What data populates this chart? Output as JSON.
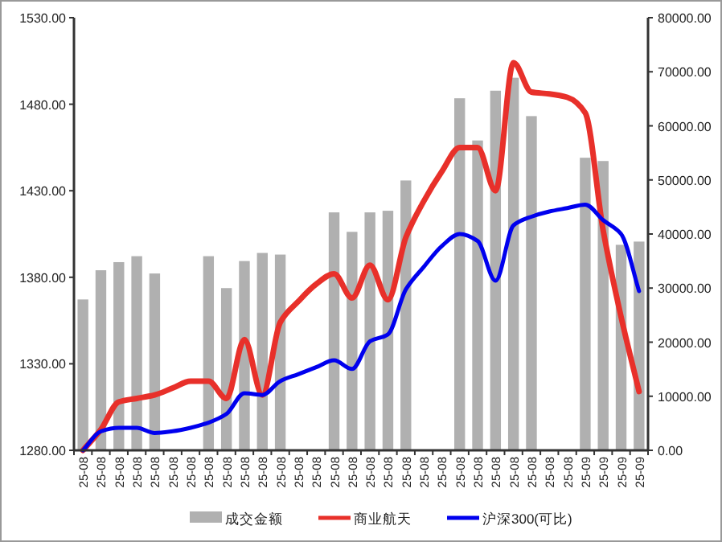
{
  "chart_data": {
    "type": "bar",
    "categories": [
      "25-08",
      "25-08",
      "25-08",
      "25-08",
      "25-08",
      "25-08",
      "25-08",
      "25-08",
      "25-08",
      "25-08",
      "25-08",
      "25-08",
      "25-08",
      "25-08",
      "25-08",
      "25-08",
      "25-08",
      "25-08",
      "25-08",
      "25-08",
      "25-08",
      "25-08",
      "25-08",
      "25-08",
      "25-08",
      "25-08",
      "25-08",
      "25-08",
      "25-09",
      "25-09",
      "25-09",
      "25-09"
    ],
    "series": [
      {
        "name": "成交金额",
        "axis": "y2",
        "color": "#b0b0b0",
        "values": [
          27900,
          33300,
          34800,
          35900,
          32700,
          null,
          null,
          35900,
          30000,
          35000,
          36500,
          36200,
          null,
          null,
          44000,
          40400,
          44000,
          44300,
          49900,
          null,
          null,
          65100,
          57300,
          66500,
          68900,
          61800,
          null,
          null,
          54100,
          53500,
          38000,
          38600
        ]
      },
      {
        "name": "商业航天",
        "type": "line",
        "axis": "y",
        "color": "#e8302a",
        "values": [
          1280,
          1292,
          1308,
          1310,
          1312,
          1316,
          1320,
          1320,
          1310,
          1344,
          1312,
          1354,
          1366,
          1376,
          1382,
          1368,
          1387,
          1367,
          1403,
          1424,
          1441,
          1455,
          1455,
          1430,
          1504,
          1487,
          1486,
          1484,
          1475,
          1407,
          1357,
          1314
        ]
      },
      {
        "name": "沪深300(可比)",
        "type": "line",
        "axis": "y",
        "color": "#0000ee",
        "values": [
          1280,
          1291,
          1293,
          1293,
          1290,
          1291,
          1293,
          1296,
          1301,
          1313,
          1312,
          1320,
          1324,
          1328,
          1332,
          1327,
          1343,
          1347,
          1373,
          1386,
          1398,
          1405,
          1401,
          1378,
          1410,
          1415,
          1418,
          1420,
          1422,
          1413,
          1405,
          1372
        ]
      }
    ],
    "ylim": [
      1280,
      1530
    ],
    "yticks": [
      {
        "value": 1280,
        "label": "1280.00"
      },
      {
        "value": 1330,
        "label": "1330.00"
      },
      {
        "value": 1380,
        "label": "1380.00"
      },
      {
        "value": 1430,
        "label": "1430.00"
      },
      {
        "value": 1480,
        "label": "1480.00"
      },
      {
        "value": 1530,
        "label": "1530.00"
      }
    ],
    "y2lim": [
      0,
      80000
    ],
    "y2ticks": [
      {
        "value": 0,
        "label": "0.00"
      },
      {
        "value": 10000,
        "label": "10000.00"
      },
      {
        "value": 20000,
        "label": "20000.00"
      },
      {
        "value": 30000,
        "label": "30000.00"
      },
      {
        "value": 40000,
        "label": "40000.00"
      },
      {
        "value": 50000,
        "label": "50000.00"
      },
      {
        "value": 60000,
        "label": "60000.00"
      },
      {
        "value": 70000,
        "label": "70000.00"
      },
      {
        "value": 80000,
        "label": "80000.00"
      }
    ],
    "legend": "bottom",
    "grid": false
  }
}
